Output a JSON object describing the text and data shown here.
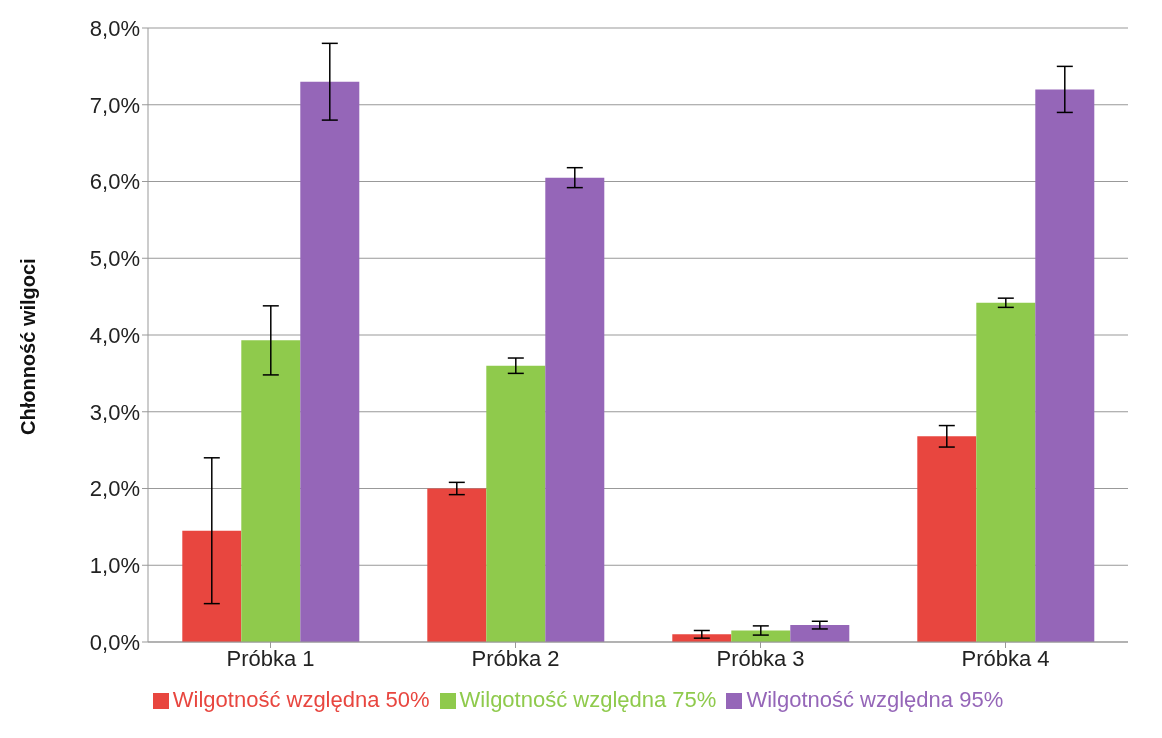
{
  "chart_data": {
    "type": "bar",
    "ylabel": "Chłonność wilgoci",
    "categories": [
      "Próbka 1",
      "Próbka 2",
      "Próbka 3",
      "Próbka 4"
    ],
    "series": [
      {
        "name": "Wilgotność względna 50%",
        "color": "#e8463f",
        "values": [
          1.45,
          2.0,
          0.1,
          2.68
        ],
        "errors": [
          0.95,
          0.08,
          0.05,
          0.14
        ]
      },
      {
        "name": "Wilgotność względna 75%",
        "color": "#8fca4c",
        "values": [
          3.93,
          3.6,
          0.15,
          4.42
        ],
        "errors": [
          0.45,
          0.1,
          0.06,
          0.06
        ]
      },
      {
        "name": "Wilgotność względna 95%",
        "color": "#9566b8",
        "values": [
          7.3,
          6.05,
          0.22,
          7.2
        ],
        "errors": [
          0.5,
          0.13,
          0.05,
          0.3
        ]
      }
    ],
    "ylim": [
      0,
      8
    ],
    "yticks": [
      {
        "value": 0,
        "label": "0,0%"
      },
      {
        "value": 1,
        "label": "1,0%"
      },
      {
        "value": 2,
        "label": "2,0%"
      },
      {
        "value": 3,
        "label": "3,0%"
      },
      {
        "value": 4,
        "label": "4,0%"
      },
      {
        "value": 5,
        "label": "5,0%"
      },
      {
        "value": 6,
        "label": "6,0%"
      },
      {
        "value": 7,
        "label": "7,0%"
      },
      {
        "value": 8,
        "label": "8,0%"
      }
    ],
    "grid": "y",
    "legend": "bottom"
  }
}
